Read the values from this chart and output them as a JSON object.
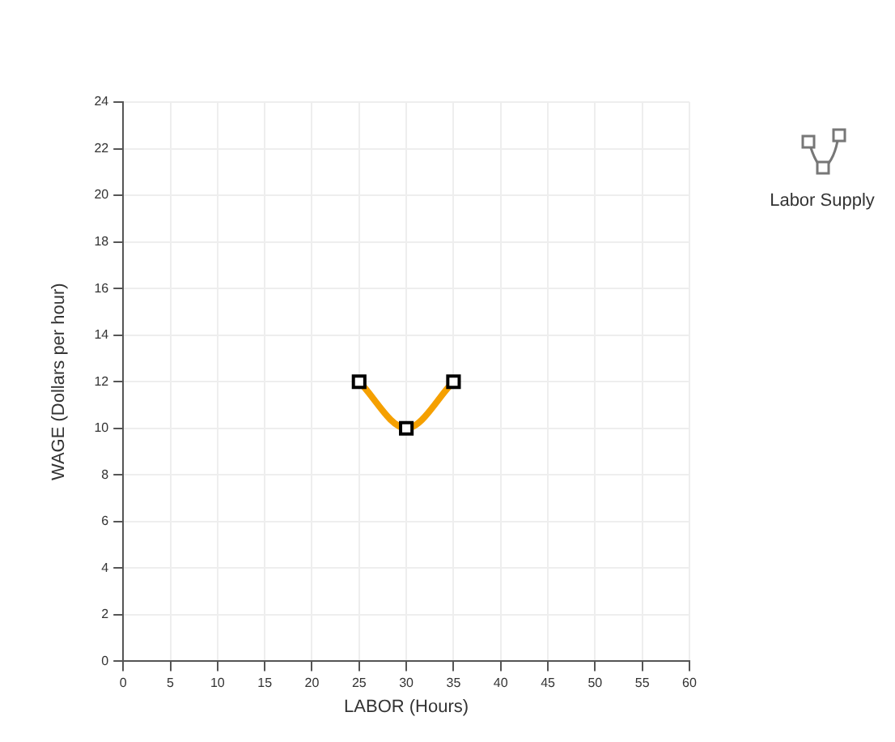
{
  "chart_data": {
    "type": "line",
    "xlabel": "LABOR (Hours)",
    "ylabel": "WAGE (Dollars per hour)",
    "x": [
      25,
      30,
      35
    ],
    "series": [
      {
        "name": "Labor Supply",
        "color": "#f5a000",
        "values": [
          12,
          10,
          12
        ]
      }
    ],
    "xlim": [
      0,
      60
    ],
    "xticks": [
      0,
      5,
      10,
      15,
      20,
      25,
      30,
      35,
      40,
      45,
      50,
      55,
      60
    ],
    "ylim": [
      0,
      24
    ],
    "yticks": [
      0,
      2,
      4,
      6,
      8,
      10,
      12,
      14,
      16,
      18,
      20,
      22,
      24
    ],
    "grid": true,
    "legend": "right",
    "marker": "square",
    "line_style": "solid"
  }
}
